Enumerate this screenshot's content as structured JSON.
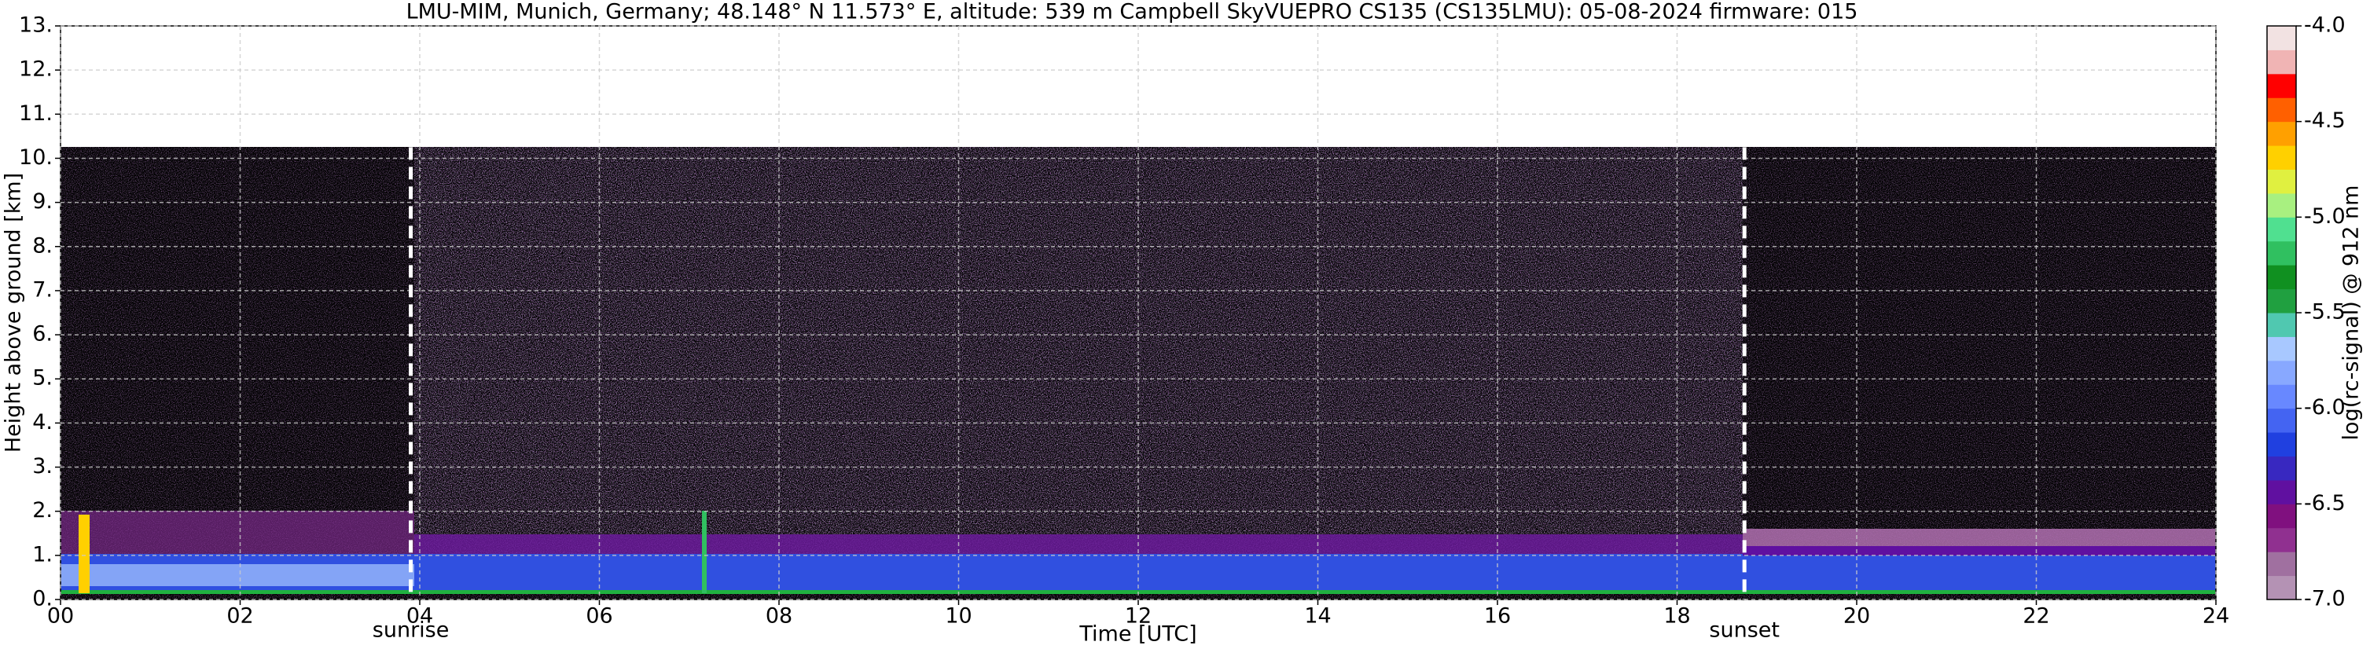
{
  "chart_data": {
    "type": "heatmap",
    "title": "LMU-MIM, Munich, Germany; 48.148° N 11.573° E, altitude: 539 m    Campbell SkyVUEPRO CS135 (CS135LMU): 05-08-2024    firmware: 015",
    "x_label": "Time [UTC]",
    "y_label": "Height above ground [km]",
    "xlim": [
      0,
      24
    ],
    "xticks": [
      {
        "value": 0,
        "label": "00"
      },
      {
        "value": 2,
        "label": "02"
      },
      {
        "value": 4,
        "label": "04"
      },
      {
        "value": 6,
        "label": "06"
      },
      {
        "value": 8,
        "label": "08"
      },
      10,
      12,
      14,
      16,
      18,
      20,
      22,
      24
    ],
    "ylim": [
      0,
      13
    ],
    "yticks": [
      {
        "value": 0,
        "label": "0."
      },
      {
        "value": 1,
        "label": "1."
      },
      {
        "value": 2,
        "label": "2."
      },
      {
        "value": 3,
        "label": "3."
      },
      {
        "value": 4,
        "label": "4."
      },
      {
        "value": 5,
        "label": "5."
      },
      {
        "value": 6,
        "label": "6."
      },
      {
        "value": 7,
        "label": "7."
      },
      {
        "value": 8,
        "label": "8."
      },
      {
        "value": 9,
        "label": "9."
      },
      {
        "value": 10,
        "label": "10."
      },
      {
        "value": 11,
        "label": "11."
      },
      {
        "value": 12,
        "label": "12."
      },
      {
        "value": 13,
        "label": "13."
      }
    ],
    "grid": true,
    "annotations": [
      {
        "text": "sunrise",
        "x": 3.9
      },
      {
        "text": "sunset",
        "x": 18.75
      }
    ],
    "colorbar": {
      "label": "log(rc-signal) @ 912 nm",
      "clim": [
        -7,
        -4
      ],
      "ticks": [
        {
          "value": -7,
          "label": "-7.0"
        },
        -6.5,
        {
          "value": -6,
          "label": "-6.0"
        },
        -5.5,
        {
          "value": -5,
          "label": "-5.0"
        },
        -4.5,
        {
          "value": -4,
          "label": "-4.0"
        }
      ],
      "colors": [
        "#b492b4",
        "#a070a0",
        "#903090",
        "#80107f",
        "#6010a0",
        "#3828c0",
        "#2040e0",
        "#4464f2",
        "#6888ff",
        "#88a8ff",
        "#a8c8ff",
        "#50c8b0",
        "#20a040",
        "#109020",
        "#30c060",
        "#50e090",
        "#a8f080",
        "#e0f040",
        "#ffd000",
        "#ffa000",
        "#ff6000",
        "#ff0000",
        "#f0b4b4",
        "#f2e2e2"
      ]
    }
  }
}
